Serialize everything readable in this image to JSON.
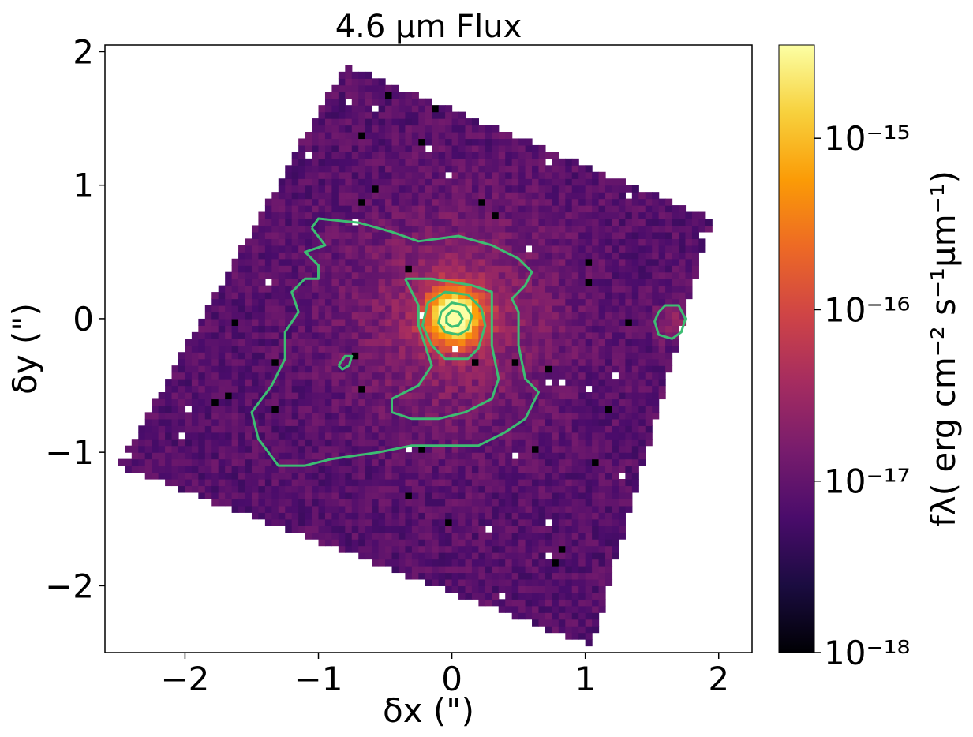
{
  "chart_data": {
    "type": "heatmap",
    "title": "4.6 µm Flux",
    "xlabel": "δx (\")",
    "ylabel": "δy (\")",
    "xlim": [
      -2.6,
      2.25
    ],
    "ylim": [
      -2.5,
      2.05
    ],
    "xticks": [
      {
        "value": -2,
        "label": "−2"
      },
      {
        "value": -1,
        "label": "−1"
      },
      {
        "value": 0,
        "label": "0"
      },
      {
        "value": 1,
        "label": "1"
      },
      {
        "value": 2,
        "label": "2"
      }
    ],
    "yticks": [
      {
        "value": 2,
        "label": "2"
      },
      {
        "value": 1,
        "label": "1"
      },
      {
        "value": 0,
        "label": "0"
      },
      {
        "value": -1,
        "label": "−1"
      },
      {
        "value": -2,
        "label": "−2"
      }
    ],
    "grid": false,
    "colormap": "inferno",
    "colorbar": {
      "label": "fλ( erg cm⁻² s⁻¹µm⁻¹)",
      "scale": "log",
      "range": [
        1e-18,
        3.5e-15
      ],
      "ticks": [
        {
          "value": 1e-15,
          "label": "10⁻¹⁵"
        },
        {
          "value": 1e-16,
          "label": "10⁻¹⁶"
        },
        {
          "value": 1e-17,
          "label": "10⁻¹⁷"
        },
        {
          "value": 1e-18,
          "label": "10⁻¹⁸"
        }
      ],
      "colors": [
        "#000004",
        "#1b0c41",
        "#4a0c6b",
        "#781c6d",
        "#a52c60",
        "#cf4446",
        "#ed6925",
        "#fb9b06",
        "#f7d13d",
        "#fcffa4"
      ]
    },
    "field": {
      "corners": [
        [
          -0.8,
          1.9
        ],
        [
          1.95,
          0.75
        ],
        [
          1.05,
          -2.45
        ],
        [
          -2.5,
          -1.1
        ]
      ],
      "pixel_scale": 0.05,
      "background_flux": 8e-18,
      "peak": {
        "x": 0.02,
        "y": 0.02,
        "flux": 3.2e-15
      }
    },
    "contour_color": "#3dbd73",
    "contours": [
      {
        "level": 1,
        "points": [
          [
            -1.05,
            0.68
          ],
          [
            -1.0,
            0.75
          ],
          [
            -0.7,
            0.72
          ],
          [
            -0.45,
            0.65
          ],
          [
            -0.25,
            0.58
          ],
          [
            0.05,
            0.62
          ],
          [
            0.3,
            0.55
          ],
          [
            0.5,
            0.45
          ],
          [
            0.6,
            0.35
          ],
          [
            0.55,
            0.25
          ],
          [
            0.45,
            0.15
          ],
          [
            0.5,
            0.05
          ],
          [
            0.5,
            -0.2
          ],
          [
            0.55,
            -0.45
          ],
          [
            0.65,
            -0.55
          ],
          [
            0.55,
            -0.75
          ],
          [
            0.4,
            -0.85
          ],
          [
            0.2,
            -0.95
          ],
          [
            0.0,
            -0.95
          ],
          [
            -0.3,
            -0.95
          ],
          [
            -0.55,
            -1.0
          ],
          [
            -0.9,
            -1.05
          ],
          [
            -1.1,
            -1.1
          ],
          [
            -1.3,
            -1.1
          ],
          [
            -1.45,
            -0.9
          ],
          [
            -1.5,
            -0.7
          ],
          [
            -1.35,
            -0.5
          ],
          [
            -1.25,
            -0.3
          ],
          [
            -1.25,
            -0.1
          ],
          [
            -1.15,
            0.05
          ],
          [
            -1.2,
            0.2
          ],
          [
            -1.1,
            0.3
          ],
          [
            -1.0,
            0.3
          ],
          [
            -1.0,
            0.4
          ],
          [
            -1.1,
            0.5
          ],
          [
            -0.95,
            0.55
          ],
          [
            -1.05,
            0.68
          ]
        ]
      },
      {
        "level": 2,
        "points": [
          [
            -0.35,
            0.3
          ],
          [
            -0.15,
            0.3
          ],
          [
            0.15,
            0.25
          ],
          [
            0.3,
            0.2
          ],
          [
            0.3,
            0.05
          ],
          [
            0.3,
            -0.2
          ],
          [
            0.35,
            -0.45
          ],
          [
            0.3,
            -0.6
          ],
          [
            0.1,
            -0.7
          ],
          [
            -0.1,
            -0.75
          ],
          [
            -0.3,
            -0.75
          ],
          [
            -0.45,
            -0.7
          ],
          [
            -0.45,
            -0.6
          ],
          [
            -0.25,
            -0.5
          ],
          [
            -0.15,
            -0.35
          ],
          [
            -0.2,
            -0.2
          ],
          [
            -0.25,
            -0.05
          ],
          [
            -0.25,
            0.1
          ],
          [
            -0.35,
            0.3
          ]
        ]
      },
      {
        "level": 3,
        "points": [
          [
            -0.18,
            0.12
          ],
          [
            -0.05,
            0.2
          ],
          [
            0.12,
            0.18
          ],
          [
            0.22,
            0.08
          ],
          [
            0.25,
            -0.05
          ],
          [
            0.2,
            -0.22
          ],
          [
            0.12,
            -0.3
          ],
          [
            -0.05,
            -0.3
          ],
          [
            -0.15,
            -0.2
          ],
          [
            -0.22,
            -0.05
          ],
          [
            -0.18,
            0.12
          ]
        ]
      },
      {
        "level": 4,
        "points": [
          [
            -0.08,
            0.05
          ],
          [
            0.0,
            0.12
          ],
          [
            0.1,
            0.1
          ],
          [
            0.15,
            0.02
          ],
          [
            0.12,
            -0.08
          ],
          [
            0.05,
            -0.12
          ],
          [
            -0.05,
            -0.1
          ],
          [
            -0.1,
            -0.03
          ],
          [
            -0.08,
            0.05
          ]
        ]
      },
      {
        "level": 5,
        "points": [
          [
            -0.04,
            0.02
          ],
          [
            0.0,
            0.06
          ],
          [
            0.05,
            0.05
          ],
          [
            0.08,
            0.0
          ],
          [
            0.05,
            -0.05
          ],
          [
            0.0,
            -0.06
          ],
          [
            -0.04,
            -0.03
          ],
          [
            -0.04,
            0.02
          ]
        ]
      },
      {
        "level": 1,
        "points": [
          [
            1.55,
            0.05
          ],
          [
            1.6,
            0.1
          ],
          [
            1.7,
            0.1
          ],
          [
            1.75,
            0.0
          ],
          [
            1.72,
            -0.1
          ],
          [
            1.65,
            -0.15
          ],
          [
            1.55,
            -0.12
          ],
          [
            1.52,
            -0.02
          ],
          [
            1.55,
            0.05
          ]
        ]
      },
      {
        "level": 1,
        "points": [
          [
            -0.85,
            -0.35
          ],
          [
            -0.8,
            -0.28
          ],
          [
            -0.75,
            -0.28
          ],
          [
            -0.77,
            -0.35
          ],
          [
            -0.82,
            -0.38
          ],
          [
            -0.85,
            -0.35
          ]
        ]
      }
    ]
  }
}
